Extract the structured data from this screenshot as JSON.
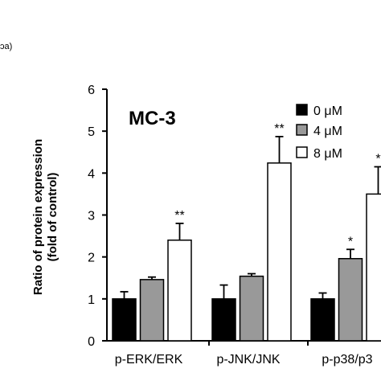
{
  "corner_label": "ɔa)",
  "chart_data": {
    "type": "bar",
    "title": "MC-3",
    "ylabel_line1": "Ratio of protein expression",
    "ylabel_line2": "(fold of control)",
    "xlabel": "",
    "ylim": [
      0,
      6
    ],
    "yticks": [
      "0",
      "1",
      "2",
      "3",
      "4",
      "5",
      "6"
    ],
    "categories": [
      "p-ERK/ERK",
      "p-JNK/JNK",
      "p-p38/p3"
    ],
    "legend_position": "top-right",
    "grid": false,
    "series": [
      {
        "name": "0 μM",
        "color": "#000000",
        "values": [
          1.0,
          1.0,
          1.0
        ],
        "errors": [
          0.17,
          0.33,
          0.14
        ],
        "significance": [
          "",
          "",
          ""
        ]
      },
      {
        "name": "4 μM",
        "color": "#999999",
        "values": [
          1.46,
          1.54,
          1.96
        ],
        "errors": [
          0.06,
          0.06,
          0.22
        ],
        "significance": [
          "",
          "",
          "*"
        ]
      },
      {
        "name": "8 μM",
        "color": "#ffffff",
        "values": [
          2.4,
          4.24,
          3.5
        ],
        "errors": [
          0.4,
          0.63,
          0.65
        ],
        "significance": [
          "**",
          "**",
          "*"
        ]
      }
    ]
  }
}
